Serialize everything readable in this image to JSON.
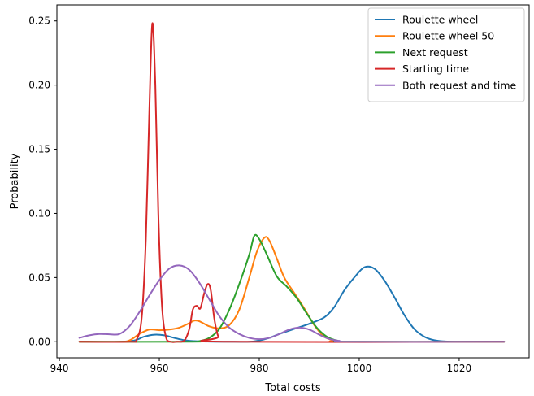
{
  "chart_data": {
    "type": "line",
    "title": "",
    "xlabel": "Total costs",
    "ylabel": "Probability",
    "xlim": [
      939.5,
      1034
    ],
    "ylim": [
      -0.0125,
      0.2625
    ],
    "xticks": [
      940,
      960,
      980,
      1000,
      1020
    ],
    "yticks": [
      0.0,
      0.05,
      0.1,
      0.15,
      0.2,
      0.25
    ],
    "xtick_labels": [
      "940",
      "960",
      "980",
      "1000",
      "1020"
    ],
    "ytick_labels": [
      "0.00",
      "0.05",
      "0.10",
      "0.15",
      "0.20",
      "0.25"
    ],
    "grid": false,
    "legend_position": "top-right",
    "series": [
      {
        "name": "Roulette wheel",
        "color": "#1f77b4",
        "points": [
          [
            944,
            0
          ],
          [
            952,
            0
          ],
          [
            955,
            0.001
          ],
          [
            957,
            0.004
          ],
          [
            959,
            0.0055
          ],
          [
            961,
            0.005
          ],
          [
            963,
            0.003
          ],
          [
            965,
            0.0012
          ],
          [
            967,
            0.0005
          ],
          [
            970,
            0.0001
          ],
          [
            975,
            0
          ],
          [
            978,
            0
          ],
          [
            980,
            0.001
          ],
          [
            982,
            0.003
          ],
          [
            984,
            0.006
          ],
          [
            987,
            0.01
          ],
          [
            990,
            0.014
          ],
          [
            993,
            0.019
          ],
          [
            995,
            0.027
          ],
          [
            997,
            0.04
          ],
          [
            999,
            0.05
          ],
          [
            1001,
            0.058
          ],
          [
            1003,
            0.057
          ],
          [
            1005,
            0.048
          ],
          [
            1007,
            0.035
          ],
          [
            1009,
            0.021
          ],
          [
            1011,
            0.01
          ],
          [
            1013,
            0.004
          ],
          [
            1015,
            0.0012
          ],
          [
            1017,
            0.0003
          ],
          [
            1020,
            0
          ],
          [
            1029,
            0
          ]
        ]
      },
      {
        "name": "Roulette wheel 50",
        "color": "#ff7f0e",
        "points": [
          [
            944,
            0
          ],
          [
            952,
            0
          ],
          [
            954,
            0.001
          ],
          [
            956,
            0.006
          ],
          [
            958,
            0.0095
          ],
          [
            960,
            0.009
          ],
          [
            962,
            0.0095
          ],
          [
            964,
            0.011
          ],
          [
            966,
            0.0145
          ],
          [
            967,
            0.0165
          ],
          [
            968,
            0.016
          ],
          [
            970,
            0.012
          ],
          [
            972,
            0.0105
          ],
          [
            974,
            0.013
          ],
          [
            976,
            0.025
          ],
          [
            978,
            0.05
          ],
          [
            979.5,
            0.07
          ],
          [
            981,
            0.081
          ],
          [
            982,
            0.079
          ],
          [
            983.5,
            0.065
          ],
          [
            985,
            0.05
          ],
          [
            987,
            0.038
          ],
          [
            989,
            0.026
          ],
          [
            991,
            0.013
          ],
          [
            993,
            0.004
          ],
          [
            995,
            0.001
          ],
          [
            997,
            0
          ],
          [
            1029,
            0
          ]
        ]
      },
      {
        "name": "Next request",
        "color": "#2ca02c",
        "points": [
          [
            944,
            0
          ],
          [
            966,
            0
          ],
          [
            968,
            0.0005
          ],
          [
            970,
            0.003
          ],
          [
            972,
            0.01
          ],
          [
            974,
            0.025
          ],
          [
            976,
            0.045
          ],
          [
            978,
            0.068
          ],
          [
            979,
            0.0825
          ],
          [
            980,
            0.08
          ],
          [
            981.5,
            0.068
          ],
          [
            983.5,
            0.051
          ],
          [
            985.5,
            0.043
          ],
          [
            987.5,
            0.034
          ],
          [
            989.5,
            0.022
          ],
          [
            991.5,
            0.011
          ],
          [
            993.5,
            0.004
          ],
          [
            995.5,
            0.001
          ],
          [
            998,
            0
          ],
          [
            1029,
            0
          ]
        ]
      },
      {
        "name": "Starting time",
        "color": "#d62728",
        "points": [
          [
            944,
            0
          ],
          [
            954,
            0
          ],
          [
            955.5,
            0.002
          ],
          [
            956.5,
            0.02
          ],
          [
            957.3,
            0.08
          ],
          [
            958,
            0.18
          ],
          [
            958.6,
            0.248
          ],
          [
            959.2,
            0.2
          ],
          [
            959.8,
            0.1
          ],
          [
            960.5,
            0.03
          ],
          [
            961.3,
            0.004
          ],
          [
            962.3,
            0
          ],
          [
            963.5,
            0
          ],
          [
            965,
            0.001
          ],
          [
            966,
            0.01
          ],
          [
            966.7,
            0.025
          ],
          [
            967.5,
            0.028
          ],
          [
            968.2,
            0.026
          ],
          [
            969,
            0.038
          ],
          [
            969.7,
            0.045
          ],
          [
            970.3,
            0.04
          ],
          [
            971,
            0.018
          ],
          [
            971.8,
            0.004
          ],
          [
            972.8,
            0
          ],
          [
            1029,
            0
          ]
        ]
      },
      {
        "name": "Both request and time",
        "color": "#9467bd",
        "points": [
          [
            944,
            0.003
          ],
          [
            946,
            0.005
          ],
          [
            948,
            0.006
          ],
          [
            950,
            0.0058
          ],
          [
            952,
            0.006
          ],
          [
            954,
            0.012
          ],
          [
            956,
            0.023
          ],
          [
            958,
            0.036
          ],
          [
            960,
            0.048
          ],
          [
            962,
            0.057
          ],
          [
            964,
            0.0595
          ],
          [
            966,
            0.056
          ],
          [
            968,
            0.046
          ],
          [
            970,
            0.033
          ],
          [
            972,
            0.02
          ],
          [
            974,
            0.011
          ],
          [
            976,
            0.006
          ],
          [
            978,
            0.003
          ],
          [
            980,
            0.002
          ],
          [
            982,
            0.003
          ],
          [
            984,
            0.006
          ],
          [
            986,
            0.0095
          ],
          [
            988,
            0.011
          ],
          [
            990,
            0.0095
          ],
          [
            992,
            0.0055
          ],
          [
            994,
            0.0022
          ],
          [
            996,
            0.0007
          ],
          [
            998,
            0
          ],
          [
            1029,
            0
          ]
        ]
      }
    ]
  }
}
